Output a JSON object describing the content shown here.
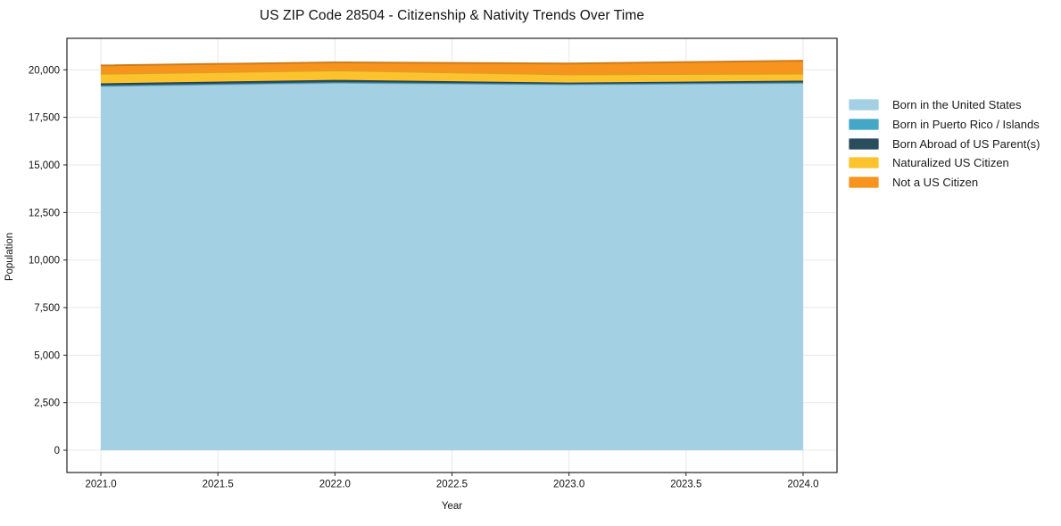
{
  "figure": {
    "background": "#ffffff",
    "grid_color": "#e7e7e7",
    "spine_color": "#222222",
    "tick_color": "#222222",
    "text_color": "#111111"
  },
  "chart_data": {
    "type": "area",
    "stacked": true,
    "title": "US ZIP Code 28504 - Citizenship & Nativity Trends Over Time",
    "xlabel": "Year",
    "ylabel": "Population",
    "x": [
      2021,
      2022,
      2023,
      2024
    ],
    "series": [
      {
        "name": "Born in the United States",
        "color": "#a4d0e4",
        "values": [
          19150,
          19320,
          19230,
          19310
        ]
      },
      {
        "name": "Born in Puerto Rico / Islands",
        "color": "#45a7c6",
        "values": [
          30,
          35,
          30,
          30
        ]
      },
      {
        "name": "Born Abroad of US Parent(s)",
        "color": "#2a4d5e",
        "values": [
          110,
          115,
          70,
          90
        ]
      },
      {
        "name": "Naturalized US Citizen",
        "color": "#fcc32d",
        "values": [
          500,
          500,
          430,
          370
        ]
      },
      {
        "name": "Not a US Citizen",
        "color": "#f6941e",
        "values": [
          440,
          420,
          570,
          680
        ]
      }
    ],
    "totals": [
      20230,
      20390,
      20330,
      20480
    ],
    "x_ticks": [
      2021.0,
      2021.5,
      2022.0,
      2022.5,
      2023.0,
      2023.5,
      2024.0
    ],
    "x_tick_labels": [
      "2021.0",
      "2021.5",
      "2022.0",
      "2022.5",
      "2023.0",
      "2023.5",
      "2024.0"
    ],
    "y_ticks": [
      0,
      2500,
      5000,
      7500,
      10000,
      12500,
      15000,
      17500,
      20000
    ],
    "y_tick_labels": [
      "0",
      "2,500",
      "5,000",
      "7,500",
      "10,000",
      "12,500",
      "15,000",
      "17,500",
      "20,000"
    ],
    "xlim": [
      2020.855,
      2024.145
    ],
    "ylim": [
      -1170,
      21655
    ],
    "grid": true,
    "legend_position": "right-outside"
  },
  "legend": {
    "items": [
      {
        "label": "Born in the United States",
        "color": "#a4d0e4"
      },
      {
        "label": "Born in Puerto Rico / Islands",
        "color": "#45a7c6"
      },
      {
        "label": "Born Abroad of US Parent(s)",
        "color": "#2a4d5e"
      },
      {
        "label": "Naturalized US Citizen",
        "color": "#fcc32d"
      },
      {
        "label": "Not a US Citizen",
        "color": "#f6941e"
      }
    ]
  }
}
